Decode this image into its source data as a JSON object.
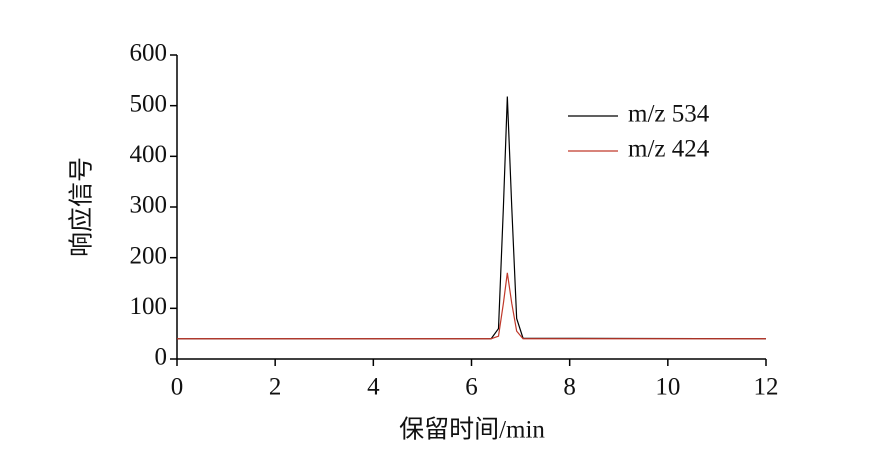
{
  "chart_data": {
    "type": "line",
    "x_label": "保留时间/min",
    "y_label": "响应信号",
    "x": [
      0,
      6.4,
      6.55,
      6.65,
      6.73,
      6.82,
      6.92,
      7.05,
      12
    ],
    "series": [
      {
        "name": "m/z 534",
        "color": "#000000",
        "values": [
          40,
          40,
          60,
          300,
          518,
          300,
          80,
          41,
          40
        ]
      },
      {
        "name": "m/z 424",
        "color": "#c0392b",
        "values": [
          40,
          40,
          45,
          110,
          170,
          110,
          55,
          40,
          40
        ]
      }
    ],
    "xlim": [
      0,
      12
    ],
    "xticks": [
      0,
      2,
      4,
      6,
      8,
      10,
      12
    ],
    "ylim": [
      0,
      600
    ],
    "yticks": [
      0,
      100,
      200,
      300,
      400,
      500,
      600
    ],
    "legend": "upper-right"
  }
}
